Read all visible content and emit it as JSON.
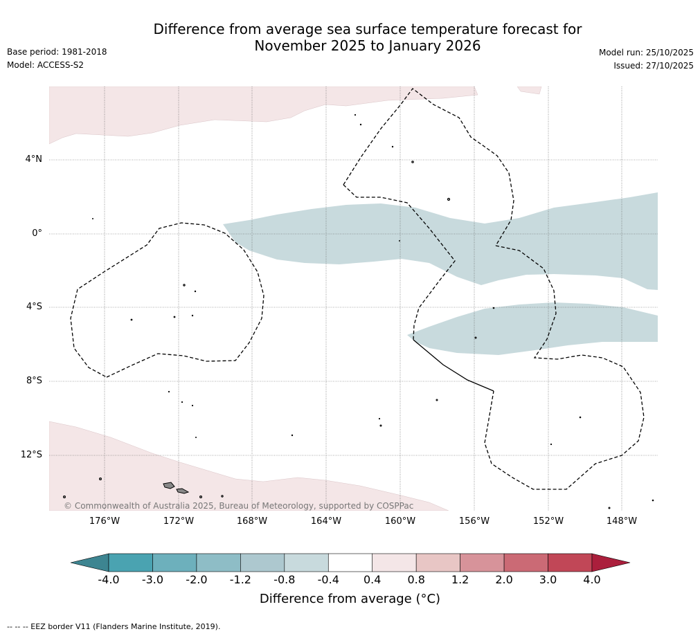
{
  "title_line1": "Difference from average sea surface temperature forecast for",
  "title_line2": "November 2025 to January 2026",
  "base_period": "Base period: 1981-2018",
  "model": "Model: ACCESS-S2",
  "model_run": "Model run: 25/10/2025",
  "issued": "Issued: 27/10/2025",
  "lat_labels": [
    "4°N",
    "0°",
    "4°S",
    "8°S",
    "12°S"
  ],
  "lon_labels": [
    "176°W",
    "172°W",
    "168°W",
    "164°W",
    "160°W",
    "156°W",
    "152°W",
    "148°W"
  ],
  "copyright": "© Commonwealth of Australia 2025, Bureau of Meteorology, supported by COSPPac",
  "colorbar": {
    "ticks": [
      "-4.0",
      "-3.0",
      "-2.0",
      "-1.2",
      "-0.8",
      "-0.4",
      "0.4",
      "0.8",
      "1.2",
      "2.0",
      "3.0",
      "4.0"
    ],
    "colors": [
      "#4aa3b1",
      "#6db0bc",
      "#8ebdc6",
      "#adc8cf",
      "#c8dadd",
      "#ffffff",
      "#f4e6e7",
      "#e8c6c5",
      "#d7939a",
      "#cb6a75",
      "#c14757"
    ],
    "under_color": "#3d8591",
    "over_color": "#ab1f3c",
    "label": "Difference from average (°C)"
  },
  "legend_footnote": "--  --  -- EEZ border V11 (Flanders Marine Institute, 2019)."
}
